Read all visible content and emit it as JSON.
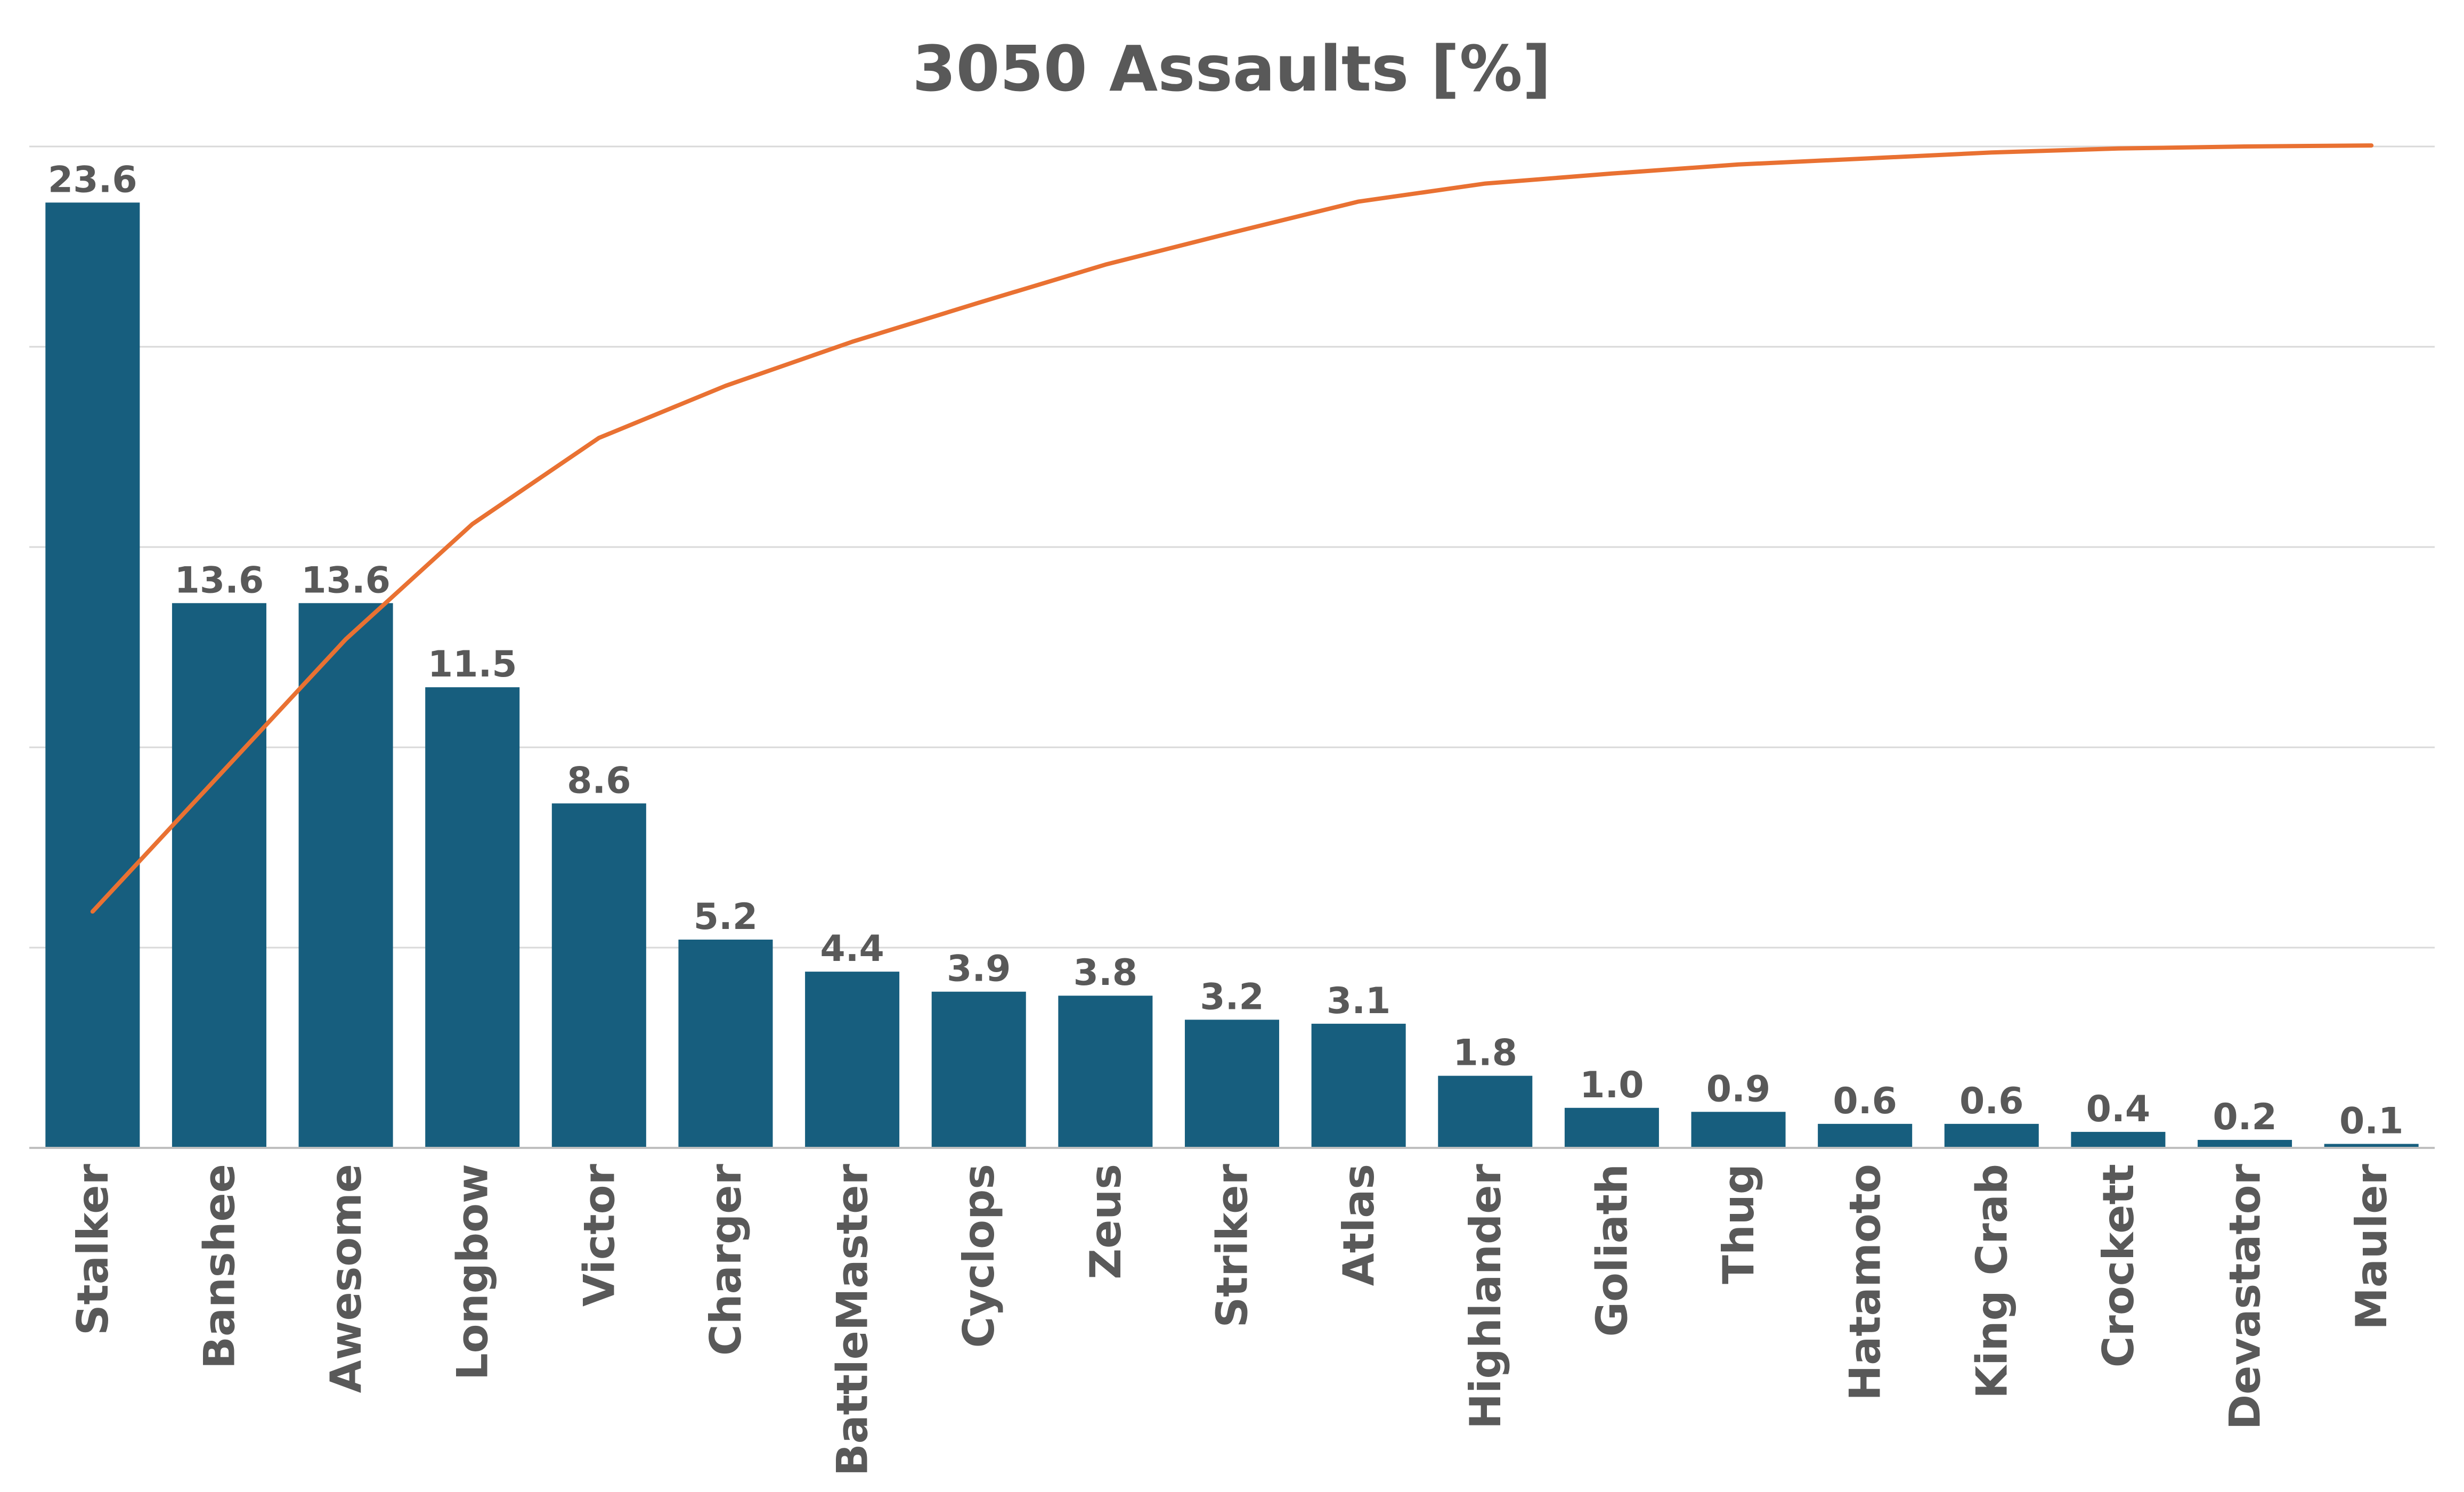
{
  "chart_data": {
    "type": "bar",
    "title": "3050 Assaults [%]",
    "xlabel": "",
    "ylabel": "",
    "ylim": [
      0,
      25
    ],
    "grid": true,
    "legend": "none",
    "categories": [
      "Stalker",
      "Banshee",
      "Awesome",
      "Longbow",
      "Victor",
      "Charger",
      "BattleMaster",
      "Cyclops",
      "Zeus",
      "Striker",
      "Atlas",
      "Highlander",
      "Goliath",
      "Thug",
      "Hatamoto",
      "King Crab",
      "Crockett",
      "Devastator",
      "Mauler"
    ],
    "values": [
      23.6,
      13.6,
      13.6,
      11.5,
      8.6,
      5.2,
      4.4,
      3.9,
      3.8,
      3.2,
      3.1,
      1.8,
      1.0,
      0.9,
      0.6,
      0.6,
      0.4,
      0.2,
      0.1
    ],
    "data_labels": [
      "23.6",
      "13.6",
      "13.6",
      "11.5",
      "8.6",
      "5.2",
      "4.4",
      "3.9",
      "3.8",
      "3.2",
      "3.1",
      "1.8",
      "1.0",
      "0.9",
      "0.6",
      "0.6",
      "0.4",
      "0.2",
      "0.1"
    ],
    "cumulative_line": {
      "type": "line",
      "values": [
        23.6,
        37.2,
        50.8,
        62.3,
        70.9,
        76.1,
        80.5,
        84.4,
        88.2,
        91.4,
        94.5,
        96.3,
        97.3,
        98.2,
        98.8,
        99.4,
        99.8,
        100.0,
        100.1
      ],
      "ylim": [
        0,
        100
      ]
    },
    "colors": {
      "bar": "#175E7E",
      "line": "#E97132",
      "text": "#595959",
      "grid": "#D9D9D9"
    }
  }
}
